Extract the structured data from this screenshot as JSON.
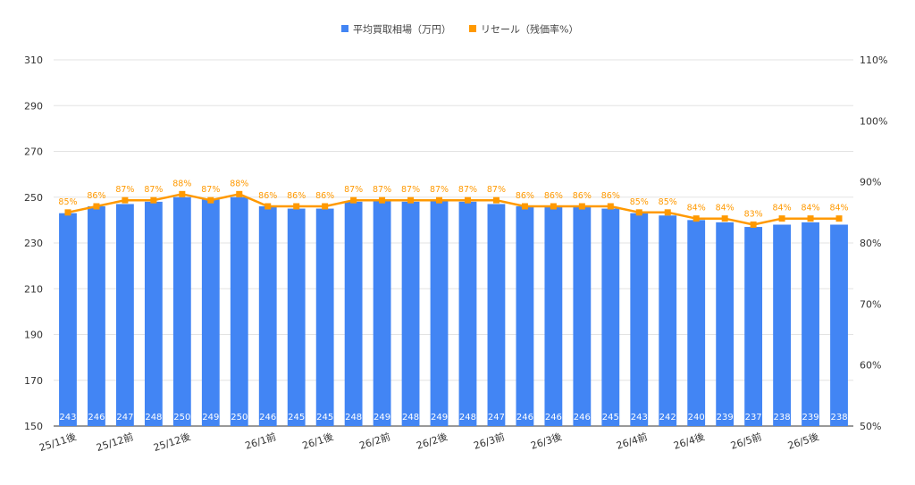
{
  "chart_data": {
    "type": "bar",
    "legend_position": "top-center",
    "grid": true,
    "categories": [
      "25/11後",
      "",
      "25/12前",
      "",
      "25/12後",
      "",
      "",
      "26/1前",
      "",
      "26/1後",
      "",
      "26/2前",
      "",
      "26/2後",
      "",
      "26/3前",
      "",
      "26/3後",
      "",
      "",
      "26/4前",
      "",
      "26/4後",
      "",
      "26/5前",
      "",
      "26/5後",
      ""
    ],
    "series": [
      {
        "name": "平均買取相場（万円）",
        "type": "bar",
        "axis": "left",
        "color": "#4285F4",
        "values": [
          243,
          246,
          247,
          248,
          250,
          249,
          250,
          246,
          245,
          245,
          248,
          249,
          248,
          249,
          248,
          247,
          246,
          246,
          246,
          245,
          243,
          242,
          240,
          239,
          237,
          238,
          239,
          238
        ],
        "labels": [
          "243",
          "246",
          "247",
          "248",
          "250",
          "249",
          "250",
          "246",
          "245",
          "245",
          "248",
          "249",
          "248",
          "249",
          "248",
          "247",
          "246",
          "246",
          "246",
          "245",
          "243",
          "242",
          "240",
          "239",
          "237",
          "238",
          "239",
          "238"
        ]
      },
      {
        "name": "リセール（残価率%）",
        "type": "line",
        "axis": "right",
        "color": "#FF9900",
        "values": [
          85,
          86,
          87,
          87,
          88,
          87,
          88,
          86,
          86,
          86,
          87,
          87,
          87,
          87,
          87,
          87,
          86,
          86,
          86,
          86,
          85,
          85,
          84,
          84,
          83,
          84,
          84,
          84
        ],
        "labels": [
          "85%",
          "86%",
          "87%",
          "87%",
          "88%",
          "87%",
          "88%",
          "86%",
          "86%",
          "86%",
          "87%",
          "87%",
          "87%",
          "87%",
          "87%",
          "87%",
          "86%",
          "86%",
          "86%",
          "86%",
          "85%",
          "85%",
          "84%",
          "84%",
          "83%",
          "84%",
          "84%",
          "84%"
        ]
      }
    ],
    "y_left": {
      "range": [
        150,
        310
      ],
      "ticks": [
        "150",
        "170",
        "190",
        "210",
        "230",
        "250",
        "270",
        "290",
        "310"
      ]
    },
    "y_right": {
      "range": [
        50,
        110
      ],
      "ticks": [
        "50%",
        "60%",
        "70%",
        "80%",
        "90%",
        "100%",
        "110%"
      ]
    }
  }
}
